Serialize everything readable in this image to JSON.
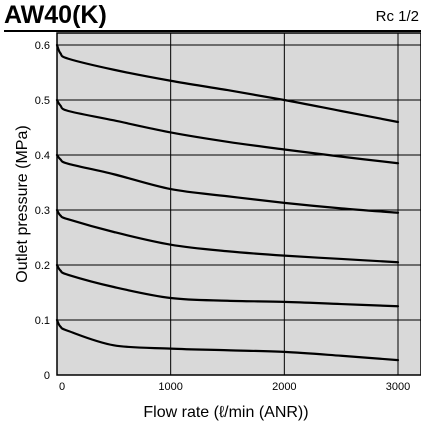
{
  "header": {
    "title": "AW40(K)",
    "port_size": "Rc 1/2"
  },
  "chart_data": {
    "type": "line",
    "title": "AW40(K)",
    "xlabel": "Flow rate (ℓ/min (ANR))",
    "ylabel": "Outlet pressure (MPa)",
    "xlim": [
      0,
      3000
    ],
    "ylim": [
      0,
      0.6
    ],
    "grid": true,
    "background": "#d9d9d9",
    "x_ticks": [
      {
        "value": 0,
        "label": "0"
      },
      {
        "value": 1000,
        "label": "1000"
      },
      {
        "value": 2000,
        "label": "2000"
      },
      {
        "value": 3000,
        "label": "3000"
      }
    ],
    "y_ticks": [
      {
        "value": 0,
        "label": "0"
      },
      {
        "value": 0.1,
        "label": "0.1"
      },
      {
        "value": 0.2,
        "label": "0.2"
      },
      {
        "value": 0.3,
        "label": "0.3"
      },
      {
        "value": 0.4,
        "label": "0.4"
      },
      {
        "value": 0.5,
        "label": "0.5"
      },
      {
        "value": 0.6,
        "label": "0.6"
      }
    ],
    "series": [
      {
        "x": [
          0,
          30,
          100,
          500,
          1000,
          1500,
          2000,
          2500,
          3000
        ],
        "y": [
          0.6,
          0.585,
          0.575,
          0.555,
          0.535,
          0.518,
          0.5,
          0.48,
          0.46
        ]
      },
      {
        "x": [
          0,
          30,
          100,
          500,
          1000,
          1500,
          2000,
          2500,
          3000
        ],
        "y": [
          0.5,
          0.49,
          0.48,
          0.463,
          0.441,
          0.424,
          0.41,
          0.397,
          0.385
        ]
      },
      {
        "x": [
          0,
          30,
          100,
          500,
          1000,
          1500,
          2000,
          2500,
          3000
        ],
        "y": [
          0.4,
          0.392,
          0.384,
          0.365,
          0.338,
          0.325,
          0.313,
          0.303,
          0.295
        ]
      },
      {
        "x": [
          0,
          30,
          100,
          500,
          1000,
          1500,
          2000,
          2500,
          3000
        ],
        "y": [
          0.3,
          0.29,
          0.283,
          0.26,
          0.237,
          0.225,
          0.217,
          0.211,
          0.205
        ]
      },
      {
        "x": [
          0,
          30,
          100,
          500,
          1000,
          1500,
          2000,
          2500,
          3000
        ],
        "y": [
          0.2,
          0.19,
          0.182,
          0.16,
          0.14,
          0.135,
          0.133,
          0.129,
          0.125
        ]
      },
      {
        "x": [
          0,
          30,
          100,
          500,
          1000,
          1500,
          2000,
          2500,
          3000
        ],
        "y": [
          0.1,
          0.088,
          0.08,
          0.054,
          0.048,
          0.045,
          0.042,
          0.035,
          0.027
        ]
      }
    ]
  }
}
